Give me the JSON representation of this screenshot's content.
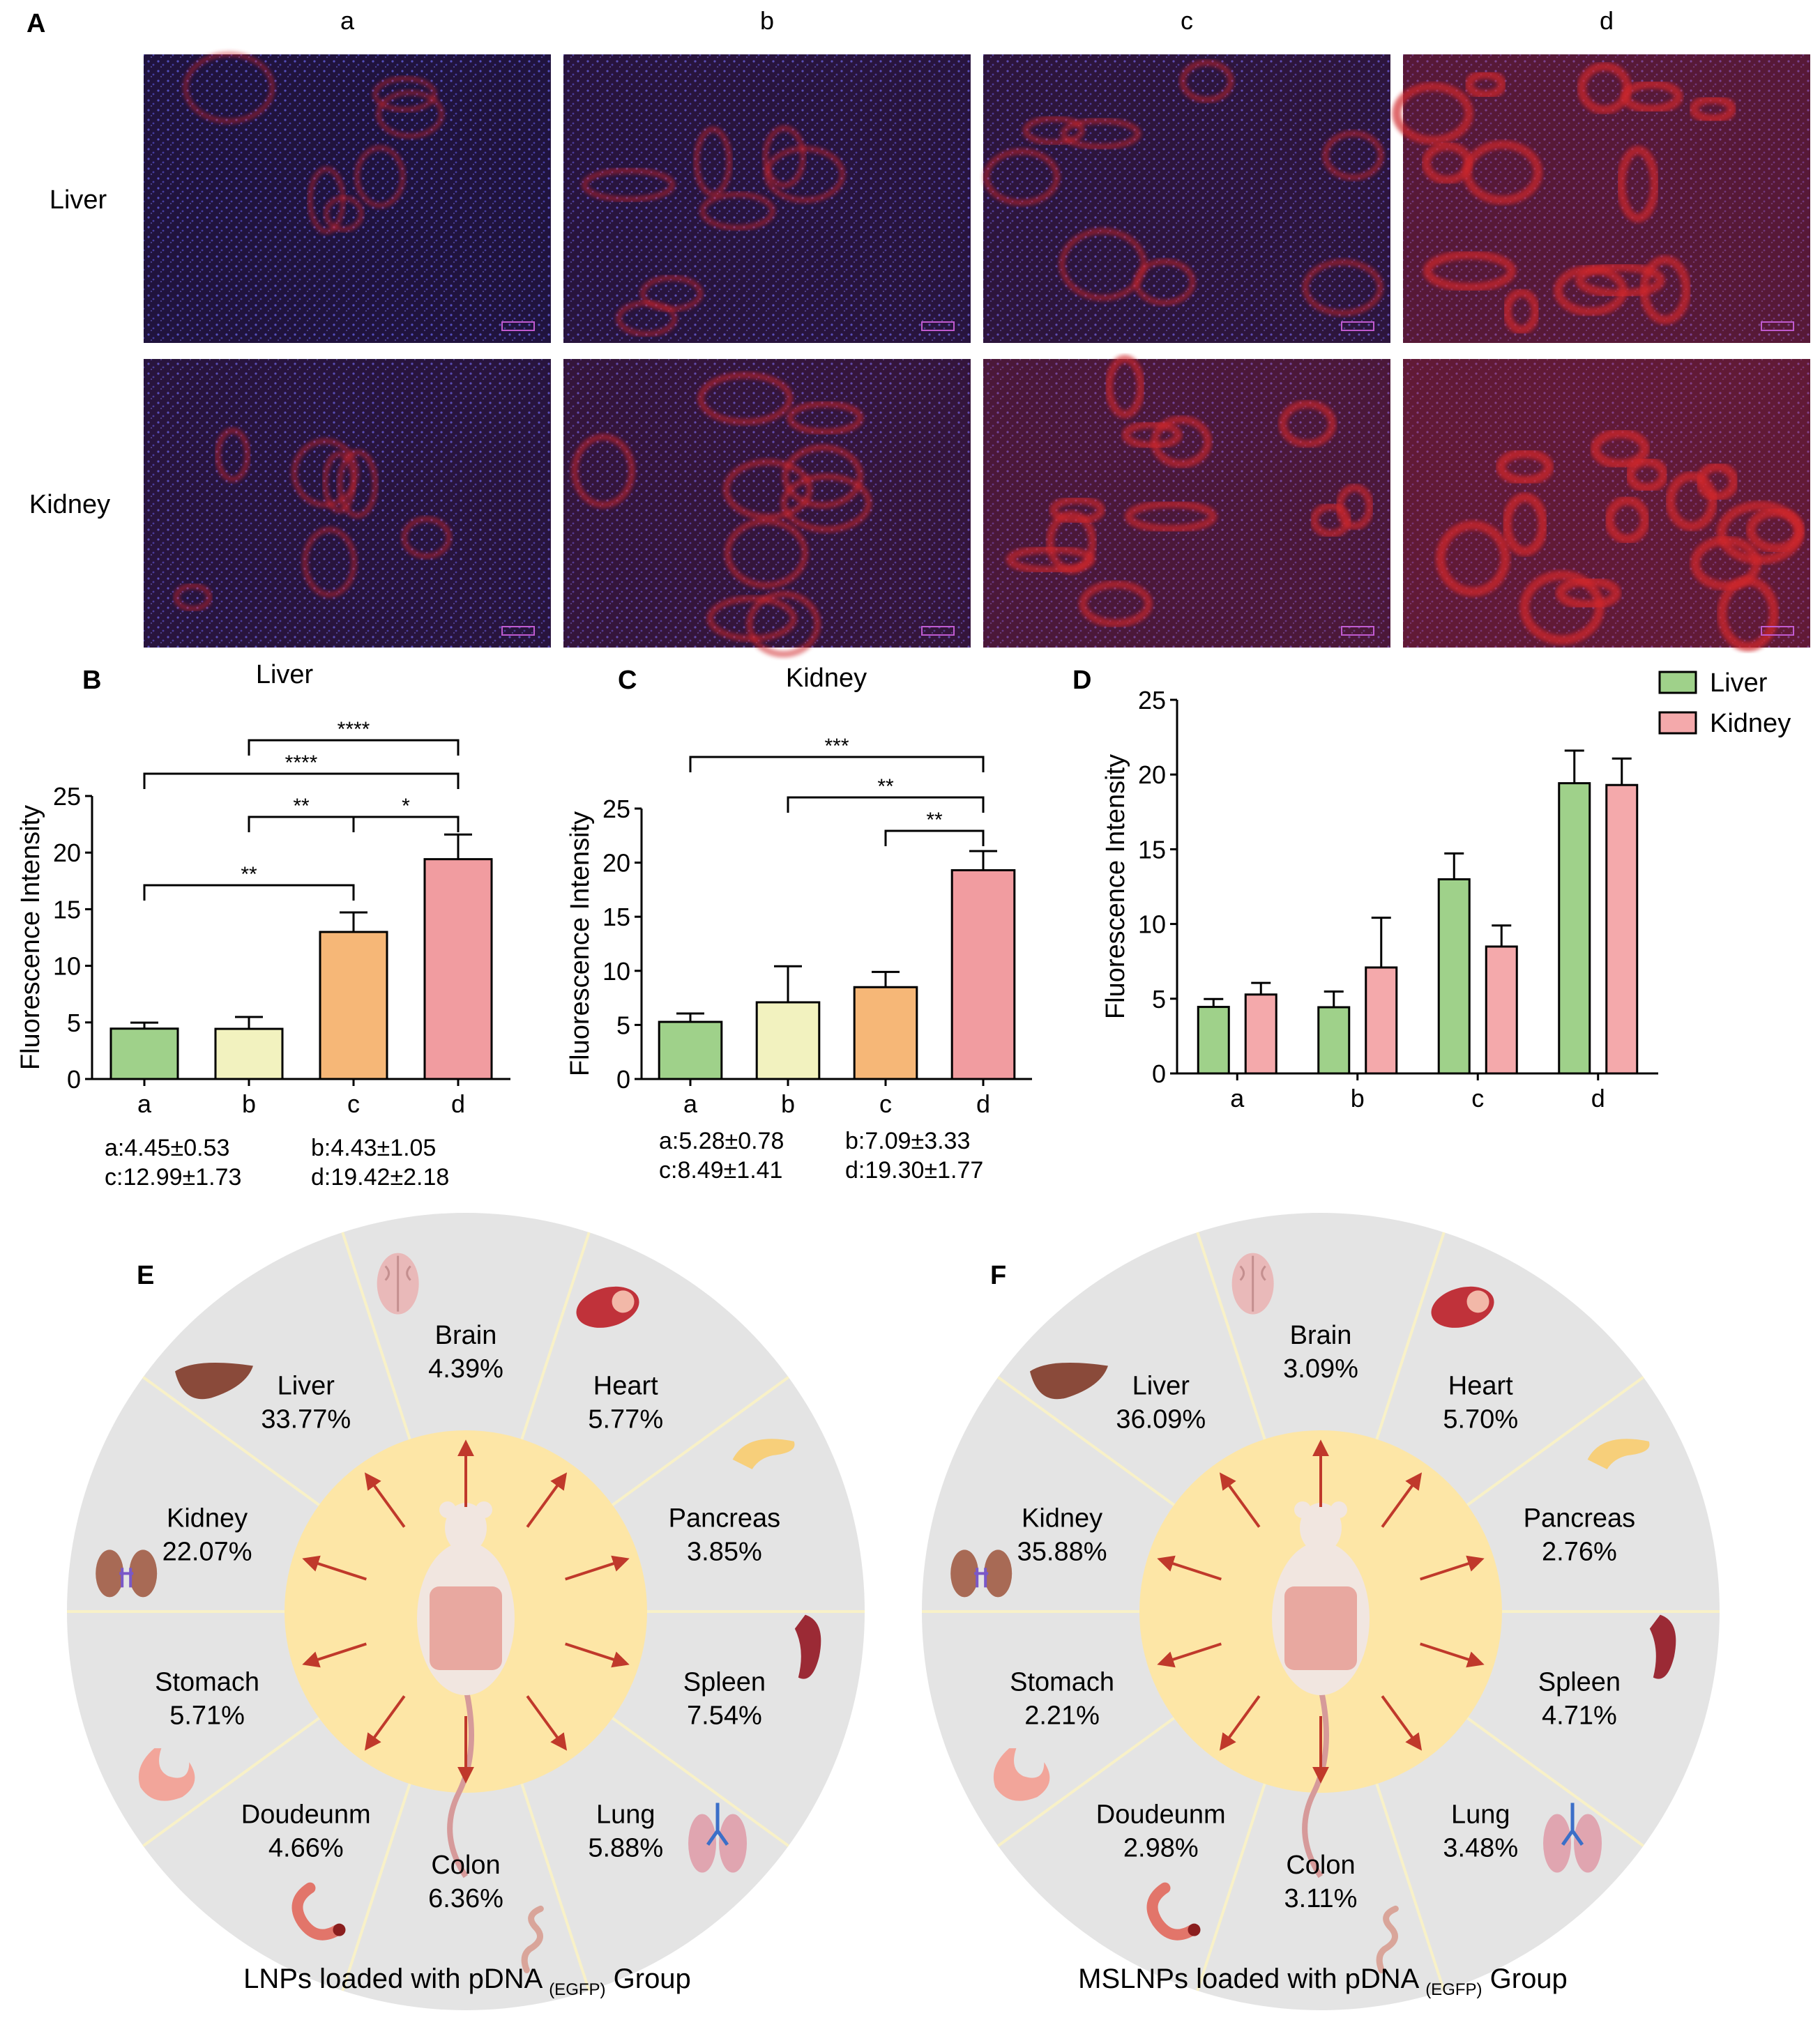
{
  "panels": {
    "A": "A",
    "B": "B",
    "C": "C",
    "D": "D",
    "E": "E",
    "F": "F"
  },
  "micrographs": {
    "columns": [
      "a",
      "b",
      "c",
      "d"
    ],
    "rows": [
      "Liver",
      "Kidney"
    ],
    "red_level": [
      [
        0.22,
        0.3,
        0.38,
        0.85
      ],
      [
        0.3,
        0.45,
        0.7,
        0.95
      ]
    ]
  },
  "colors": {
    "a": "#9fd18a",
    "b": "#f2f2bf",
    "c": "#f6b777",
    "d": "#f19ca0",
    "liver": "#9fd18a",
    "kidney": "#f4a9ab",
    "wheel_outer": "#e4e4e4",
    "wheel_inner": "#fde6a6",
    "arrow": "#c0392b",
    "stain_blue": "#3a48b8",
    "stain_red": "#d0282a"
  },
  "chart_data": [
    {
      "type": "bar",
      "panel": "B",
      "title": "Liver",
      "ylabel": "Fluorescence Intensity",
      "categories": [
        "a",
        "b",
        "c",
        "d"
      ],
      "values": [
        4.45,
        4.43,
        12.99,
        19.42
      ],
      "errors": [
        0.53,
        1.05,
        1.73,
        2.18
      ],
      "ylim": [
        0,
        25
      ],
      "yticks": [
        "0",
        "5",
        "10",
        "15",
        "20",
        "25"
      ],
      "significance": [
        {
          "from": 1,
          "to": 3,
          "label": "****"
        },
        {
          "from": 0,
          "to": 3,
          "label": "****"
        },
        {
          "from": 1,
          "to": 2,
          "label": "**"
        },
        {
          "from": 2,
          "to": 3,
          "label": "*"
        },
        {
          "from": 0,
          "to": 2,
          "label": "**"
        }
      ],
      "notes": [
        "a:4.45±0.53",
        "b:4.43±1.05",
        "c:12.99±1.73",
        "d:19.42±2.18"
      ]
    },
    {
      "type": "bar",
      "panel": "C",
      "title": "Kidney",
      "ylabel": "Fluorescence Intensity",
      "categories": [
        "a",
        "b",
        "c",
        "d"
      ],
      "values": [
        5.28,
        7.09,
        8.49,
        19.3
      ],
      "errors": [
        0.78,
        3.33,
        1.41,
        1.77
      ],
      "ylim": [
        0,
        25
      ],
      "yticks": [
        "0",
        "5",
        "10",
        "15",
        "20",
        "25"
      ],
      "significance": [
        {
          "from": 0,
          "to": 3,
          "label": "***"
        },
        {
          "from": 1,
          "to": 3,
          "label": "**"
        },
        {
          "from": 2,
          "to": 3,
          "label": "**"
        }
      ],
      "notes": [
        "a:5.28±0.78",
        "b:7.09±3.33",
        "c:8.49±1.41",
        "d:19.30±1.77"
      ]
    },
    {
      "type": "bar",
      "panel": "D",
      "ylabel": "Fluorescence Intensity",
      "categories": [
        "a",
        "b",
        "c",
        "d"
      ],
      "series": [
        {
          "name": "Liver",
          "values": [
            4.45,
            4.43,
            12.99,
            19.42
          ],
          "errors": [
            0.53,
            1.05,
            1.73,
            2.18
          ]
        },
        {
          "name": "Kidney",
          "values": [
            5.28,
            7.09,
            8.49,
            19.3
          ],
          "errors": [
            0.78,
            3.33,
            1.41,
            1.77
          ]
        }
      ],
      "ylim": [
        0,
        25
      ],
      "yticks": [
        "0",
        "5",
        "10",
        "15",
        "20",
        "25"
      ],
      "legend": "top-right"
    }
  ],
  "biodistribution": [
    {
      "panel": "E",
      "caption_pre": "LNPs loaded with pDNA ",
      "caption_sub": "(EGFP)",
      "caption_post": " Group",
      "organs": [
        {
          "name": "Brain",
          "value": "4.39%",
          "icon": "brain-icon"
        },
        {
          "name": "Heart",
          "value": "5.77%",
          "icon": "heart-icon"
        },
        {
          "name": "Pancreas",
          "value": "3.85%",
          "icon": "pancreas-icon"
        },
        {
          "name": "Spleen",
          "value": "7.54%",
          "icon": "spleen-icon"
        },
        {
          "name": "Lung",
          "value": "5.88%",
          "icon": "lung-icon"
        },
        {
          "name": "Colon",
          "value": "6.36%",
          "icon": "colon-icon"
        },
        {
          "name": "Doudeunm",
          "value": "4.66%",
          "icon": "duodenum-icon"
        },
        {
          "name": "Stomach",
          "value": "5.71%",
          "icon": "stomach-icon"
        },
        {
          "name": "Kidney",
          "value": "22.07%",
          "icon": "kidney-icon"
        },
        {
          "name": "Liver",
          "value": "33.77%",
          "icon": "liver-icon"
        }
      ]
    },
    {
      "panel": "F",
      "caption_pre": "MSLNPs loaded with pDNA ",
      "caption_sub": "(EGFP)",
      "caption_post": " Group",
      "organs": [
        {
          "name": "Brain",
          "value": "3.09%",
          "icon": "brain-icon"
        },
        {
          "name": "Heart",
          "value": "5.70%",
          "icon": "heart-icon"
        },
        {
          "name": "Pancreas",
          "value": "2.76%",
          "icon": "pancreas-icon"
        },
        {
          "name": "Spleen",
          "value": "4.71%",
          "icon": "spleen-icon"
        },
        {
          "name": "Lung",
          "value": "3.48%",
          "icon": "lung-icon"
        },
        {
          "name": "Colon",
          "value": "3.11%",
          "icon": "colon-icon"
        },
        {
          "name": "Doudeunm",
          "value": "2.98%",
          "icon": "duodenum-icon"
        },
        {
          "name": "Stomach",
          "value": "2.21%",
          "icon": "stomach-icon"
        },
        {
          "name": "Kidney",
          "value": "35.88%",
          "icon": "kidney-icon"
        },
        {
          "name": "Liver",
          "value": "36.09%",
          "icon": "liver-icon"
        }
      ]
    }
  ]
}
